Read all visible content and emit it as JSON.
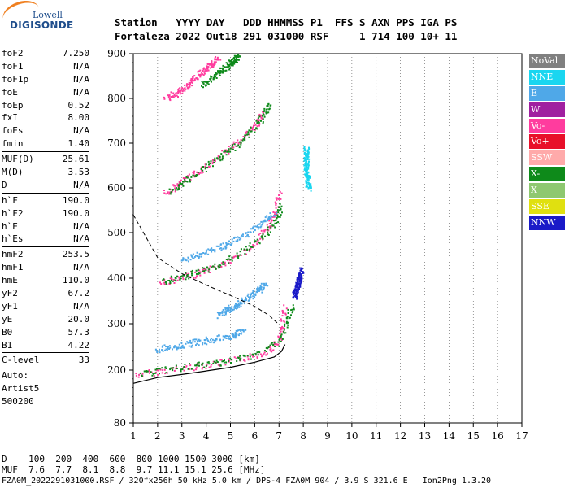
{
  "logo": {
    "line1": "Lowell",
    "line2": "DIGISONDE"
  },
  "header": {
    "line1": "Station   YYYY DAY   DDD HHMMSS P1  FFS S AXN PPS IGA PS",
    "line2": "Fortaleza 2022 Out18 291 031000 RSF     1 714 100 10+ 11"
  },
  "params": [
    {
      "name": "foF2",
      "value": "7.250"
    },
    {
      "name": "foF1",
      "value": "N/A"
    },
    {
      "name": "foF1p",
      "value": "N/A"
    },
    {
      "name": "foE",
      "value": "N/A"
    },
    {
      "name": "foEp",
      "value": "0.52"
    },
    {
      "name": "fxI",
      "value": "8.00"
    },
    {
      "name": "foEs",
      "value": "N/A"
    },
    {
      "name": "fmin",
      "value": "1.40"
    },
    {
      "sep": true
    },
    {
      "name": "MUF(D)",
      "value": "25.61"
    },
    {
      "name": "M(D)",
      "value": "3.53"
    },
    {
      "name": "D",
      "value": "N/A"
    },
    {
      "sep": true
    },
    {
      "name": "h`F",
      "value": "190.0"
    },
    {
      "name": "h`F2",
      "value": "190.0"
    },
    {
      "name": "h`E",
      "value": "N/A"
    },
    {
      "name": "h`Es",
      "value": "N/A"
    },
    {
      "sep": true
    },
    {
      "name": "hmF2",
      "value": "253.5"
    },
    {
      "name": "hmF1",
      "value": "N/A"
    },
    {
      "name": "hmE",
      "value": "110.0"
    },
    {
      "name": "yF2",
      "value": "67.2"
    },
    {
      "name": "yF1",
      "value": "N/A"
    },
    {
      "name": "yE",
      "value": "20.0"
    },
    {
      "name": "B0",
      "value": "57.3"
    },
    {
      "name": "B1",
      "value": "4.22"
    },
    {
      "sep": true
    },
    {
      "name": "C-level",
      "value": "33"
    },
    {
      "sep": true
    },
    {
      "text": "Auto:"
    },
    {
      "text": "Artist5"
    },
    {
      "text": "500200"
    }
  ],
  "legend": [
    {
      "label": "NoVal",
      "color": "#808080"
    },
    {
      "label": "NNE",
      "color": "#1ad6f0"
    },
    {
      "label": "E",
      "color": "#4fa8e8"
    },
    {
      "label": "W",
      "color": "#a020a0"
    },
    {
      "label": "Vo-",
      "color": "#ff3c9e"
    },
    {
      "label": "Vo+",
      "color": "#e8102a"
    },
    {
      "label": "SSW",
      "color": "#ffaaaa"
    },
    {
      "label": "X-",
      "color": "#0e8a1a"
    },
    {
      "label": "X+",
      "color": "#8ec870"
    },
    {
      "label": "SSE",
      "color": "#e0e010"
    },
    {
      "label": "NNW",
      "color": "#1a1ac8"
    }
  ],
  "footer": {
    "line1": "D    100  200  400  600  800 1000 1500 3000 [km]",
    "line2": "MUF  7.6  7.7  8.1  8.8  9.7 11.1 15.1 25.6 [MHz]",
    "line3": "FZA0M_2022291031000.RSF / 320fx256h 50 kHz 5.0 km / DPS-4 FZA0M 904 / 3.9 S 321.6 E   Ion2Png 1.3.20"
  },
  "chart_data": {
    "type": "scatter",
    "xlim": [
      1,
      17
    ],
    "ylim": [
      80,
      900
    ],
    "xticks": [
      "1",
      "2",
      "3",
      "4",
      "5",
      "6",
      "7",
      "8",
      "9",
      "10",
      "11",
      "12",
      "13",
      "14",
      "15",
      "16",
      "17"
    ],
    "yticks": [
      "80",
      "200",
      "300",
      "400",
      "500",
      "600",
      "700",
      "800",
      "900"
    ],
    "grid": "vertical dotted",
    "series": [
      {
        "name": "Vo-",
        "color": "#ff3c9e",
        "traces": [
          {
            "x": [
              1.1,
              2,
              3,
              4,
              5,
              6,
              6.6,
              7,
              7.1,
              7.2
            ],
            "y": [
              190,
              198,
              205,
              212,
              220,
              232,
              245,
              265,
              290,
              340
            ]
          },
          {
            "x": [
              2.1,
              3,
              4,
              5,
              6,
              6.5,
              6.8,
              7
            ],
            "y": [
              390,
              402,
              418,
              440,
              475,
              510,
              545,
              590
            ]
          },
          {
            "x": [
              2.3,
              3,
              4,
              5,
              6,
              6.3
            ],
            "y": [
              590,
              615,
              650,
              690,
              740,
              770
            ]
          },
          {
            "x": [
              2.3,
              3,
              3.5,
              4,
              4.5
            ],
            "y": [
              800,
              820,
              845,
              870,
              890
            ]
          }
        ]
      },
      {
        "name": "X-",
        "color": "#0e8a1a",
        "traces": [
          {
            "x": [
              1.3,
              2,
              3,
              4,
              5,
              6,
              7,
              7.3,
              7.5
            ],
            "y": [
              192,
              200,
              206,
              214,
              222,
              235,
              262,
              300,
              340
            ]
          },
          {
            "x": [
              2.2,
              3,
              4,
              5,
              6,
              6.8,
              7.1
            ],
            "y": [
              393,
              405,
              420,
              444,
              478,
              520,
              560
            ]
          },
          {
            "x": [
              2.5,
              3.3,
              4.3,
              5.3,
              6.2,
              6.6
            ],
            "y": [
              595,
              620,
              660,
              700,
              750,
              790
            ]
          },
          {
            "x": [
              3.8,
              4.5,
              5,
              5.3
            ],
            "y": [
              830,
              860,
              880,
              895
            ]
          }
        ]
      },
      {
        "name": "E",
        "color": "#4fa8e8",
        "traces": [
          {
            "x": [
              1.9,
              3,
              4,
              5,
              5.5
            ],
            "y": [
              245,
              255,
              265,
              275,
              285
            ]
          },
          {
            "x": [
              3,
              4,
              5,
              6,
              6.8
            ],
            "y": [
              440,
              460,
              480,
              510,
              545
            ]
          },
          {
            "x": [
              4.5,
              5,
              5.5,
              6,
              6.5
            ],
            "y": [
              320,
              335,
              350,
              370,
              390
            ]
          }
        ]
      },
      {
        "name": "NNE",
        "color": "#1ad6f0",
        "traces": [
          {
            "x": [
              8.1,
              8.1,
              8.2
            ],
            "y": [
              690,
              645,
              600
            ]
          }
        ]
      },
      {
        "name": "NNW",
        "color": "#1a1ac8",
        "traces": [
          {
            "x": [
              7.6,
              7.7,
              7.8,
              7.9
            ],
            "y": [
              360,
              380,
              395,
              420
            ]
          }
        ]
      }
    ],
    "profile_solid": {
      "x": [
        1,
        2,
        3,
        4,
        5,
        6,
        6.8,
        7.1,
        7.25
      ],
      "y": [
        170,
        183,
        190,
        198,
        206,
        217,
        228,
        240,
        255
      ]
    },
    "profile_dashed": {
      "x": [
        1,
        2,
        3,
        4,
        5,
        6,
        6.6,
        7
      ],
      "y": [
        540,
        445,
        410,
        385,
        362,
        338,
        318,
        298
      ]
    }
  }
}
